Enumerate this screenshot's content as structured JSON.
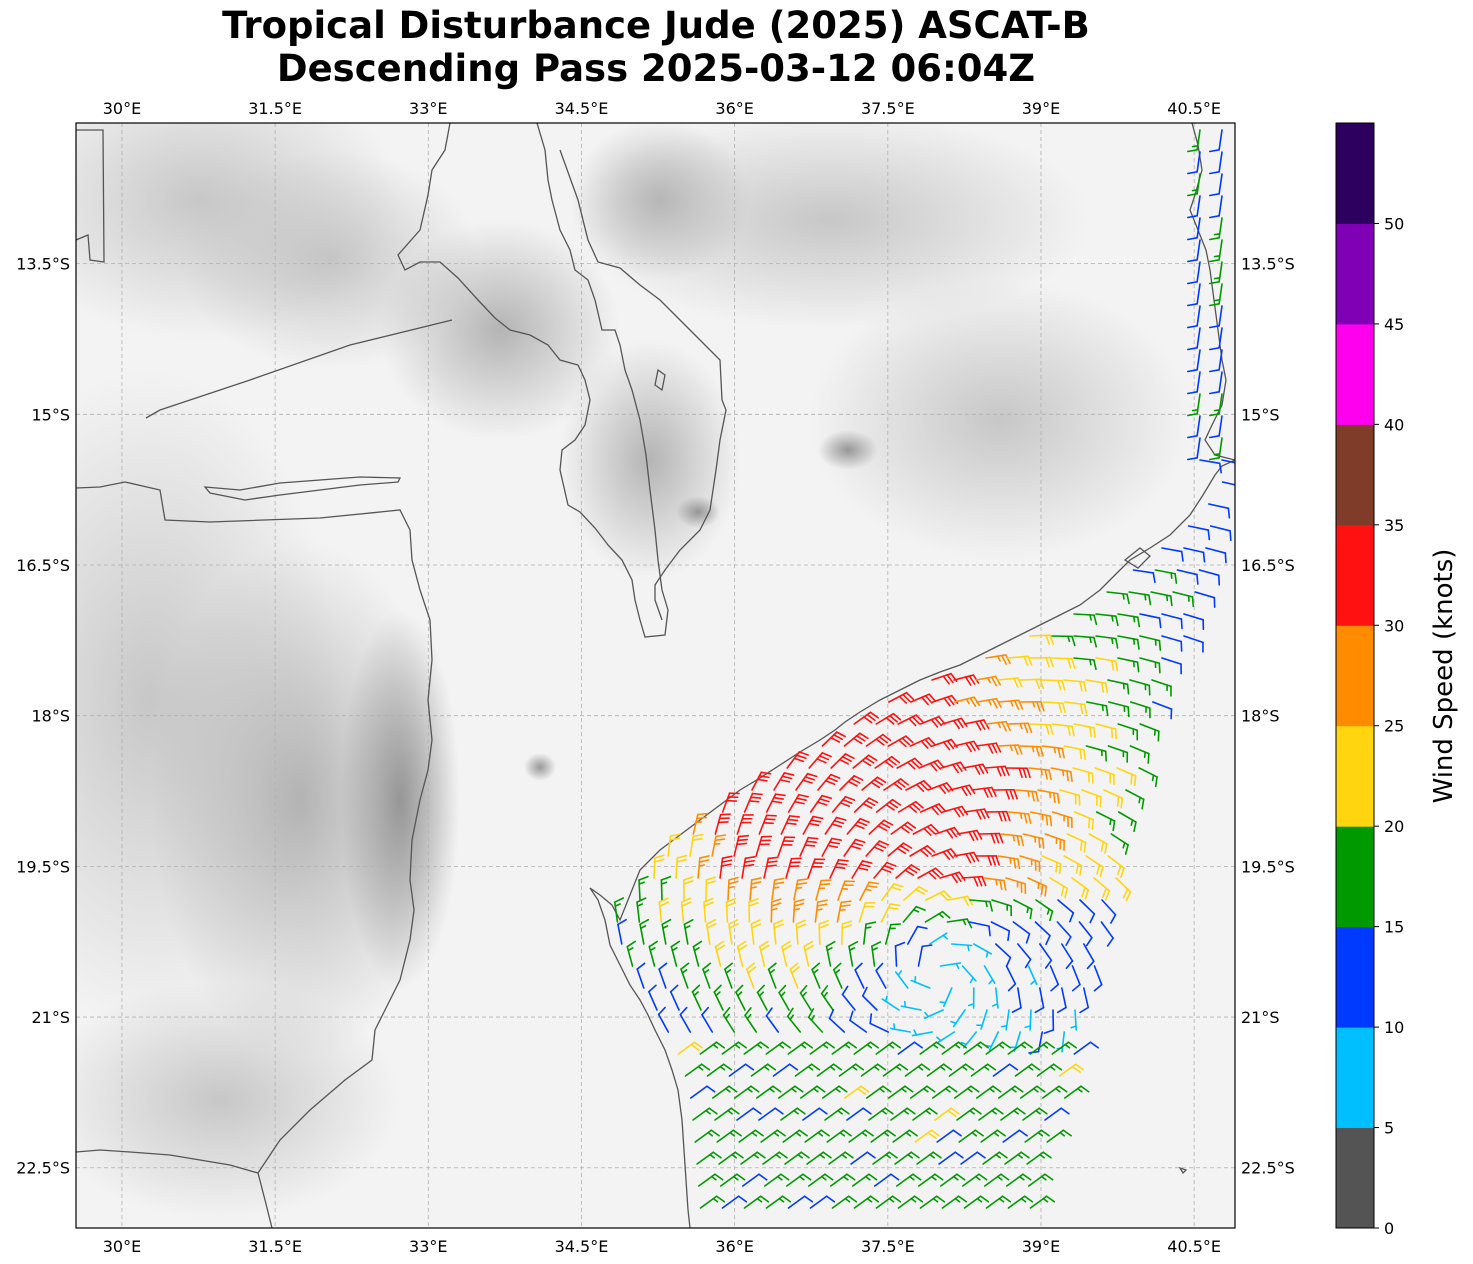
{
  "title": {
    "line1": "Tropical Disturbance Jude (2025) ASCAT-B",
    "line2": "Descending Pass 2025-03-12 06:04Z"
  },
  "map": {
    "lon_range": [
      29.55,
      40.9
    ],
    "lat_range": [
      -23.1,
      -12.1
    ],
    "lon_ticks": [
      {
        "value": 30.0,
        "label": "30°E"
      },
      {
        "value": 31.5,
        "label": "31.5°E"
      },
      {
        "value": 33.0,
        "label": "33°E"
      },
      {
        "value": 34.5,
        "label": "34.5°E"
      },
      {
        "value": 36.0,
        "label": "36°E"
      },
      {
        "value": 37.5,
        "label": "37.5°E"
      },
      {
        "value": 39.0,
        "label": "39°E"
      },
      {
        "value": 40.5,
        "label": "40.5°E"
      }
    ],
    "lat_ticks": [
      {
        "value": -13.5,
        "label": "13.5°S"
      },
      {
        "value": -15.0,
        "label": "15°S"
      },
      {
        "value": -16.5,
        "label": "16.5°S"
      },
      {
        "value": -18.0,
        "label": "18°S"
      },
      {
        "value": -19.5,
        "label": "19.5°S"
      },
      {
        "value": -21.0,
        "label": "21°S"
      },
      {
        "value": -22.5,
        "label": "22.5°S"
      }
    ],
    "gridlines": true,
    "background": "grayscale terrain",
    "coastline_color": "#555555"
  },
  "colorbar": {
    "label": "Wind Speed (knots)",
    "bins": [
      {
        "from": 0,
        "to": 5,
        "color": "#545454"
      },
      {
        "from": 5,
        "to": 10,
        "color": "#00bfff"
      },
      {
        "from": 10,
        "to": 15,
        "color": "#0039ff"
      },
      {
        "from": 15,
        "to": 20,
        "color": "#009900"
      },
      {
        "from": 20,
        "to": 25,
        "color": "#ffd510"
      },
      {
        "from": 25,
        "to": 30,
        "color": "#ff8c00"
      },
      {
        "from": 30,
        "to": 35,
        "color": "#ff1111"
      },
      {
        "from": 35,
        "to": 40,
        "color": "#7f3d29"
      },
      {
        "from": 40,
        "to": 45,
        "color": "#ff00ee"
      },
      {
        "from": 45,
        "to": 50,
        "color": "#8000b5"
      },
      {
        "from": 50,
        "to": 55,
        "color": "#2d0060"
      }
    ],
    "ticks": [
      {
        "value": 0,
        "label": "0"
      },
      {
        "value": 5,
        "label": "5"
      },
      {
        "value": 10,
        "label": "10"
      },
      {
        "value": 15,
        "label": "15"
      },
      {
        "value": 20,
        "label": "20"
      },
      {
        "value": 25,
        "label": "25"
      },
      {
        "value": 30,
        "label": "30"
      },
      {
        "value": 35,
        "label": "35"
      },
      {
        "value": 40,
        "label": "40"
      },
      {
        "value": 45,
        "label": "45"
      },
      {
        "value": 50,
        "label": "50"
      }
    ]
  },
  "wind_field": {
    "description_source": "ASCAT-B descending pass",
    "center": {
      "lon": 38.0,
      "lat": -20.6
    },
    "max_wind_lon": 37.0,
    "max_wind_lat": -19.0
  }
}
